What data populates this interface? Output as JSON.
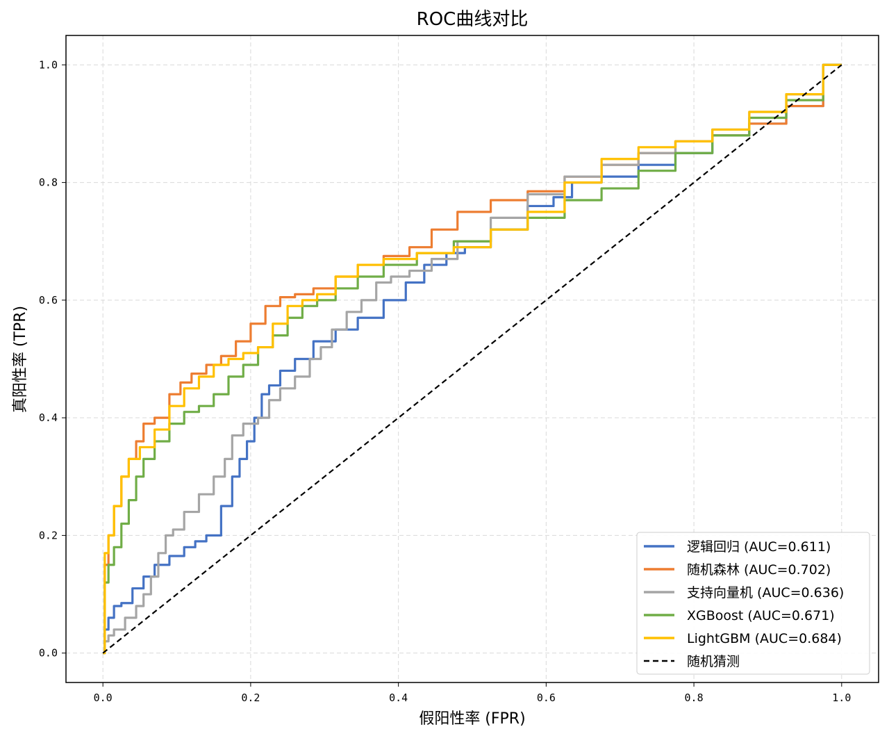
{
  "chart_data": {
    "type": "line",
    "title": "ROC曲线对比",
    "xlabel": "假阳性率 (FPR)",
    "ylabel": "真阳性率 (TPR)",
    "xlim": [
      -0.05,
      1.05
    ],
    "ylim": [
      -0.05,
      1.05
    ],
    "xticks": [
      "0.0",
      "0.2",
      "0.4",
      "0.6",
      "0.8",
      "1.0"
    ],
    "yticks": [
      "0.0",
      "0.2",
      "0.4",
      "0.6",
      "0.8",
      "1.0"
    ],
    "grid": true,
    "legend_position": "lower-right",
    "series": [
      {
        "name": "逻辑回归 (AUC=0.611)",
        "color": "#4472C4",
        "style": "solid",
        "x": [
          0,
          0.005,
          0.01,
          0.02,
          0.03,
          0.05,
          0.06,
          0.08,
          0.1,
          0.12,
          0.13,
          0.15,
          0.17,
          0.18,
          0.19,
          0.2,
          0.21,
          0.22,
          0.23,
          0.25,
          0.27,
          0.3,
          0.33,
          0.36,
          0.4,
          0.42,
          0.45,
          0.48,
          0.5,
          0.55,
          0.6,
          0.62,
          0.65,
          0.7,
          0.75,
          0.8,
          0.85,
          0.9,
          0.95,
          1.0
        ],
        "y": [
          0,
          0.04,
          0.06,
          0.08,
          0.085,
          0.11,
          0.13,
          0.15,
          0.165,
          0.18,
          0.19,
          0.2,
          0.25,
          0.3,
          0.33,
          0.36,
          0.4,
          0.44,
          0.455,
          0.48,
          0.5,
          0.53,
          0.55,
          0.57,
          0.6,
          0.63,
          0.66,
          0.68,
          0.69,
          0.72,
          0.76,
          0.775,
          0.8,
          0.81,
          0.83,
          0.85,
          0.88,
          0.9,
          0.93,
          1.0
        ]
      },
      {
        "name": "随机森林 (AUC=0.702)",
        "color": "#ED7D31",
        "style": "solid",
        "x": [
          0,
          0.005,
          0.01,
          0.02,
          0.03,
          0.04,
          0.05,
          0.06,
          0.08,
          0.1,
          0.11,
          0.13,
          0.15,
          0.17,
          0.19,
          0.21,
          0.23,
          0.25,
          0.27,
          0.3,
          0.33,
          0.36,
          0.4,
          0.43,
          0.46,
          0.5,
          0.55,
          0.6,
          0.65,
          0.7,
          0.75,
          0.8,
          0.85,
          0.9,
          0.95,
          1.0
        ],
        "y": [
          0,
          0.15,
          0.2,
          0.25,
          0.3,
          0.33,
          0.36,
          0.39,
          0.4,
          0.44,
          0.46,
          0.475,
          0.49,
          0.505,
          0.53,
          0.56,
          0.59,
          0.605,
          0.61,
          0.62,
          0.64,
          0.66,
          0.675,
          0.69,
          0.72,
          0.75,
          0.77,
          0.785,
          0.81,
          0.83,
          0.85,
          0.87,
          0.88,
          0.9,
          0.93,
          1.0
        ]
      },
      {
        "name": "支持向量机 (AUC=0.636)",
        "color": "#A5A5A5",
        "style": "solid",
        "x": [
          0,
          0.005,
          0.01,
          0.02,
          0.04,
          0.05,
          0.06,
          0.07,
          0.08,
          0.09,
          0.1,
          0.12,
          0.14,
          0.16,
          0.17,
          0.18,
          0.2,
          0.22,
          0.23,
          0.25,
          0.27,
          0.29,
          0.3,
          0.32,
          0.34,
          0.36,
          0.38,
          0.4,
          0.43,
          0.46,
          0.5,
          0.55,
          0.6,
          0.65,
          0.7,
          0.75,
          0.8,
          0.85,
          0.9,
          0.95,
          1.0
        ],
        "y": [
          0,
          0.02,
          0.03,
          0.04,
          0.06,
          0.08,
          0.1,
          0.13,
          0.17,
          0.2,
          0.21,
          0.24,
          0.27,
          0.3,
          0.33,
          0.37,
          0.39,
          0.4,
          0.43,
          0.45,
          0.47,
          0.5,
          0.52,
          0.55,
          0.58,
          0.6,
          0.63,
          0.64,
          0.65,
          0.67,
          0.7,
          0.74,
          0.78,
          0.81,
          0.83,
          0.85,
          0.87,
          0.89,
          0.92,
          0.95,
          1.0
        ]
      },
      {
        "name": "XGBoost (AUC=0.671)",
        "color": "#70AD47",
        "style": "solid",
        "x": [
          0,
          0.005,
          0.01,
          0.02,
          0.03,
          0.04,
          0.05,
          0.06,
          0.08,
          0.1,
          0.12,
          0.14,
          0.16,
          0.18,
          0.2,
          0.22,
          0.24,
          0.26,
          0.28,
          0.3,
          0.33,
          0.36,
          0.4,
          0.45,
          0.5,
          0.55,
          0.6,
          0.65,
          0.7,
          0.75,
          0.8,
          0.85,
          0.9,
          0.95,
          1.0
        ],
        "y": [
          0,
          0.12,
          0.15,
          0.18,
          0.22,
          0.26,
          0.3,
          0.33,
          0.36,
          0.39,
          0.41,
          0.42,
          0.44,
          0.47,
          0.49,
          0.52,
          0.54,
          0.57,
          0.59,
          0.6,
          0.62,
          0.64,
          0.66,
          0.68,
          0.7,
          0.72,
          0.74,
          0.77,
          0.79,
          0.82,
          0.85,
          0.88,
          0.91,
          0.94,
          1.0
        ]
      },
      {
        "name": "LightGBM (AUC=0.684)",
        "color": "#FFC000",
        "style": "solid",
        "x": [
          0,
          0.005,
          0.01,
          0.02,
          0.03,
          0.04,
          0.06,
          0.08,
          0.1,
          0.12,
          0.14,
          0.16,
          0.18,
          0.2,
          0.22,
          0.24,
          0.26,
          0.28,
          0.3,
          0.33,
          0.36,
          0.4,
          0.45,
          0.5,
          0.55,
          0.6,
          0.65,
          0.7,
          0.75,
          0.8,
          0.85,
          0.9,
          0.95,
          1.0
        ],
        "y": [
          0,
          0.17,
          0.2,
          0.25,
          0.3,
          0.33,
          0.35,
          0.38,
          0.42,
          0.45,
          0.47,
          0.49,
          0.5,
          0.51,
          0.52,
          0.56,
          0.59,
          0.6,
          0.61,
          0.64,
          0.66,
          0.67,
          0.68,
          0.69,
          0.72,
          0.75,
          0.8,
          0.84,
          0.86,
          0.87,
          0.89,
          0.92,
          0.95,
          1.0
        ]
      },
      {
        "name": "随机猜测",
        "color": "#000000",
        "style": "dashed",
        "x": [
          0,
          1
        ],
        "y": [
          0,
          1
        ]
      }
    ]
  }
}
